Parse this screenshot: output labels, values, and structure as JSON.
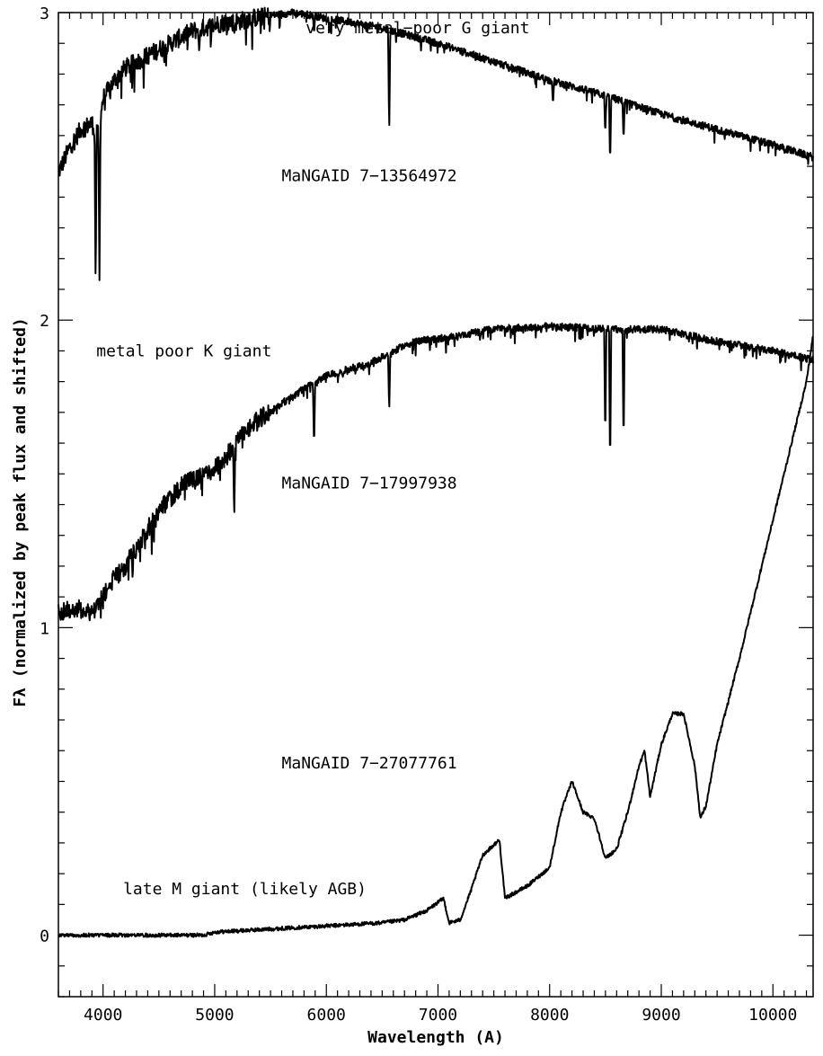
{
  "chart_data": {
    "type": "line",
    "xlabel": "Wavelength (A)",
    "ylabel": "Fλ (normalized by peak flux and shifted)",
    "xlim": [
      3600,
      10360
    ],
    "ylim": [
      -0.2,
      3.0
    ],
    "x_ticks": [
      4000,
      5000,
      6000,
      7000,
      8000,
      9000,
      10000
    ],
    "x_tick_labels": [
      "4000",
      "5000",
      "6000",
      "7000",
      "8000",
      "9000",
      "10000"
    ],
    "y_ticks": [
      0,
      1,
      2,
      3
    ],
    "y_tick_labels": [
      "0",
      "1",
      "2",
      "3"
    ],
    "grid": false,
    "series": [
      {
        "offset": 2,
        "x": [
          3600,
          3700,
          3800,
          3900,
          3950,
          4000,
          4100,
          4200,
          4300,
          4400,
          4500,
          4600,
          4700,
          4800,
          4900,
          5000,
          5100,
          5200,
          5300,
          5500,
          5700,
          5900,
          6000,
          6200,
          6500,
          6800,
          7000,
          7500,
          8000,
          8500,
          9000,
          9500,
          10000,
          10360
        ],
        "y": [
          0.48,
          0.56,
          0.62,
          0.64,
          0.6,
          0.72,
          0.78,
          0.82,
          0.84,
          0.86,
          0.88,
          0.9,
          0.92,
          0.94,
          0.95,
          0.96,
          0.97,
          0.97,
          0.98,
          0.99,
          1.0,
          0.99,
          0.98,
          0.97,
          0.95,
          0.92,
          0.9,
          0.84,
          0.78,
          0.73,
          0.67,
          0.62,
          0.57,
          0.53
        ],
        "lines": [
          [
            3933,
            0.1
          ],
          [
            3968,
            0.13
          ],
          [
            4101,
            0.82
          ],
          [
            4340,
            0.85
          ],
          [
            4861,
            0.87
          ],
          [
            5175,
            0.93
          ],
          [
            5890,
            0.93
          ],
          [
            6563,
            0.6
          ],
          [
            8030,
            0.7
          ],
          [
            8498,
            0.6
          ],
          [
            8542,
            0.5
          ],
          [
            8662,
            0.58
          ]
        ]
      },
      {
        "offset": 1,
        "x": [
          3600,
          3700,
          3800,
          3900,
          4000,
          4100,
          4200,
          4300,
          4400,
          4500,
          4600,
          4700,
          4800,
          4900,
          5000,
          5100,
          5200,
          5300,
          5400,
          5500,
          5600,
          5700,
          5800,
          5900,
          6000,
          6200,
          6400,
          6600,
          6800,
          7000,
          7500,
          8000,
          8500,
          9000,
          9500,
          10000,
          10360
        ],
        "y": [
          0.05,
          0.06,
          0.06,
          0.05,
          0.1,
          0.16,
          0.2,
          0.26,
          0.32,
          0.38,
          0.42,
          0.46,
          0.48,
          0.5,
          0.52,
          0.55,
          0.62,
          0.65,
          0.68,
          0.7,
          0.73,
          0.75,
          0.78,
          0.8,
          0.82,
          0.84,
          0.86,
          0.9,
          0.93,
          0.94,
          0.97,
          0.98,
          0.97,
          0.97,
          0.93,
          0.9,
          0.87
        ],
        "lines": [
          [
            5175,
            0.35
          ],
          [
            5890,
            0.58
          ],
          [
            6563,
            0.7
          ],
          [
            8498,
            0.6
          ],
          [
            8542,
            0.5
          ],
          [
            8662,
            0.58
          ]
        ]
      },
      {
        "offset": 0,
        "x": [
          3600,
          4000,
          4500,
          4900,
          5000,
          5500,
          6000,
          6500,
          6700,
          6900,
          7050,
          7100,
          7200,
          7300,
          7400,
          7550,
          7600,
          7700,
          7800,
          8000,
          8100,
          8200,
          8300,
          8400,
          8500,
          8600,
          8700,
          8800,
          8850,
          8900,
          9000,
          9100,
          9200,
          9300,
          9350,
          9400,
          9500,
          9600,
          9700,
          9800,
          9900,
          10000,
          10100,
          10200,
          10300,
          10360
        ],
        "y": [
          0.0,
          0.0,
          0.0,
          0.0,
          0.01,
          0.02,
          0.03,
          0.04,
          0.05,
          0.08,
          0.12,
          0.04,
          0.05,
          0.15,
          0.26,
          0.31,
          0.12,
          0.14,
          0.16,
          0.22,
          0.4,
          0.5,
          0.4,
          0.38,
          0.25,
          0.28,
          0.4,
          0.55,
          0.6,
          0.45,
          0.62,
          0.72,
          0.72,
          0.55,
          0.38,
          0.42,
          0.62,
          0.76,
          0.9,
          1.05,
          1.2,
          1.35,
          1.5,
          1.65,
          1.8,
          1.95
        ],
        "lines": []
      }
    ],
    "annotations": [
      {
        "text": "very metal−poor G giant",
        "x": 5815,
        "y": 2.95
      },
      {
        "text": "MaNGAID 7−13564972",
        "x": 5600,
        "y": 2.47
      },
      {
        "text": "metal poor K giant",
        "x": 3940,
        "y": 1.9
      },
      {
        "text": "MaNGAID 7−17997938",
        "x": 5600,
        "y": 1.47
      },
      {
        "text": "MaNGAID 7−27077761",
        "x": 5600,
        "y": 0.56
      },
      {
        "text": "late M giant (likely AGB)",
        "x": 4180,
        "y": 0.15
      }
    ]
  }
}
